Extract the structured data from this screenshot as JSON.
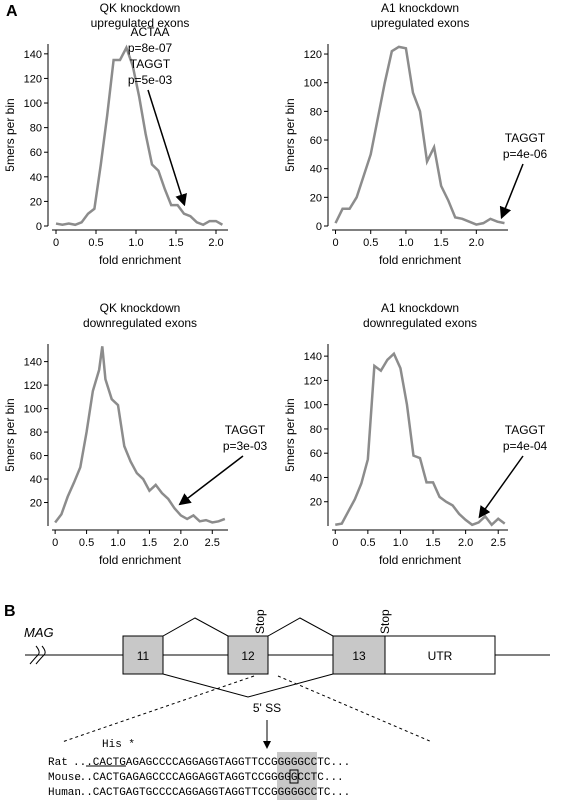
{
  "panel_a": {
    "label": "A"
  },
  "chart_data": [
    {
      "type": "line",
      "title": [
        "QK knockdown",
        "upregulated exons"
      ],
      "xlabel": "fold enrichment",
      "ylabel": "5mers per bin",
      "x": [
        0,
        0.08,
        0.16,
        0.24,
        0.32,
        0.4,
        0.48,
        0.56,
        0.64,
        0.72,
        0.8,
        0.88,
        0.96,
        1.04,
        1.12,
        1.2,
        1.28,
        1.36,
        1.44,
        1.52,
        1.6,
        1.68,
        1.76,
        1.84,
        1.92,
        2.0,
        2.08
      ],
      "values": [
        2,
        1,
        2,
        1,
        3,
        10,
        14,
        50,
        90,
        135,
        135,
        145,
        130,
        105,
        75,
        50,
        45,
        30,
        17,
        17,
        10,
        8,
        3,
        1,
        4,
        4,
        1
      ],
      "color": "#8c8c8c",
      "xlim": [
        -0.05,
        2.15
      ],
      "ylim": [
        0,
        148
      ],
      "xticks": [
        0,
        0.5,
        {
          "value": 1,
          "label": "1.0"
        },
        1.5,
        {
          "value": 2,
          "label": "2.0"
        }
      ],
      "yticks": [
        0,
        20,
        40,
        60,
        80,
        100,
        120,
        140
      ],
      "annotation": [
        "ACTAA",
        "p=8e-07",
        "TAGGT",
        "p=5e-03"
      ]
    },
    {
      "type": "line",
      "title": [
        "A1 knockdown",
        "upregulated exons"
      ],
      "xlabel": "fold enrichment",
      "ylabel": "5mers per bin",
      "x": [
        0,
        0.1,
        0.2,
        0.3,
        0.4,
        0.5,
        0.6,
        0.7,
        0.8,
        0.9,
        1.0,
        1.1,
        1.2,
        1.3,
        1.4,
        1.5,
        1.6,
        1.7,
        1.8,
        1.9,
        2.0,
        2.1,
        2.2,
        2.3,
        2.4
      ],
      "values": [
        2,
        12,
        12,
        20,
        35,
        50,
        75,
        100,
        122,
        125,
        124,
        93,
        80,
        45,
        55,
        28,
        18,
        6,
        5,
        3,
        1,
        2,
        5,
        3,
        2
      ],
      "color": "#8c8c8c",
      "xlim": [
        -0.05,
        2.45
      ],
      "ylim": [
        0,
        127
      ],
      "xticks": [
        0,
        0.5,
        {
          "value": 1,
          "label": "1.0"
        },
        1.5,
        {
          "value": 2,
          "label": "2.0"
        }
      ],
      "yticks": [
        0,
        20,
        40,
        60,
        80,
        100,
        120
      ],
      "annotation": [
        "TAGGT",
        "p=4e-06"
      ]
    },
    {
      "type": "line",
      "title": [
        "QK knockdown",
        "downregulated exons"
      ],
      "xlabel": "fold enrichment",
      "ylabel": "5mers per bin",
      "x": [
        0,
        0.1,
        0.2,
        0.3,
        0.4,
        0.5,
        0.6,
        0.7,
        0.75,
        0.8,
        0.9,
        1.0,
        1.1,
        1.2,
        1.3,
        1.4,
        1.5,
        1.6,
        1.7,
        1.8,
        1.9,
        2.0,
        2.1,
        2.2,
        2.3,
        2.4,
        2.5,
        2.6,
        2.7
      ],
      "values": [
        3,
        10,
        25,
        37,
        50,
        80,
        115,
        133,
        153,
        125,
        108,
        103,
        68,
        55,
        45,
        40,
        30,
        35,
        28,
        23,
        15,
        9,
        6,
        9,
        4,
        5,
        3,
        4,
        6
      ],
      "color": "#8c8c8c",
      "xlim": [
        -0.05,
        2.75
      ],
      "ylim": [
        0,
        155
      ],
      "xticks": [
        0,
        0.5,
        {
          "value": 1,
          "label": "1.0"
        },
        1.5,
        {
          "value": 2,
          "label": "2.0"
        },
        2.5
      ],
      "yticks": [
        20,
        40,
        60,
        80,
        100,
        120,
        140
      ],
      "annotation": [
        "TAGGT",
        "p=3e-03"
      ]
    },
    {
      "type": "line",
      "title": [
        "A1 knockdown",
        "downregulated exons"
      ],
      "xlabel": "fold enrichment",
      "ylabel": "5mers per bin",
      "x": [
        0,
        0.1,
        0.2,
        0.3,
        0.4,
        0.5,
        0.6,
        0.7,
        0.8,
        0.9,
        1.0,
        1.1,
        1.2,
        1.3,
        1.4,
        1.5,
        1.6,
        1.7,
        1.8,
        1.9,
        2.0,
        2.1,
        2.2,
        2.3,
        2.4,
        2.5,
        2.6
      ],
      "values": [
        1,
        2,
        12,
        22,
        35,
        55,
        132,
        128,
        137,
        142,
        130,
        100,
        58,
        56,
        36,
        36,
        24,
        20,
        17,
        10,
        5,
        1,
        3,
        8,
        1,
        6,
        2
      ],
      "color": "#8c8c8c",
      "xlim": [
        -0.05,
        2.65
      ],
      "ylim": [
        0,
        150
      ],
      "xticks": [
        0,
        0.5,
        {
          "value": 1,
          "label": "1.0"
        },
        1.5,
        {
          "value": 2,
          "label": "2.0"
        },
        2.5
      ],
      "yticks": [
        20,
        40,
        60,
        80,
        100,
        120,
        140
      ],
      "annotation": [
        "TAGGT",
        "p=4e-04"
      ]
    }
  ],
  "panel_b": {
    "label": "B",
    "gene": "MAG",
    "exons": [
      "11",
      "12",
      "13",
      "UTR"
    ],
    "stops": [
      "Stop",
      "Stop"
    ],
    "splice_site": "5' SS",
    "codon": "His *",
    "rows": [
      {
        "name": "Rat",
        "seq": "...CACTGAGAGCCCCAGGAGGTAGGTTCCGGGGGCCTC..."
      },
      {
        "name": "Mouse",
        "seq": "...CACTGAGAGCCCCAGGAGGTAGGTCCGGGGGCCTC..."
      },
      {
        "name": "Human",
        "seq": "...CACTGAGTGCCCCAGGAGGTAGGTTCCGGGGGCCTC..."
      }
    ]
  }
}
